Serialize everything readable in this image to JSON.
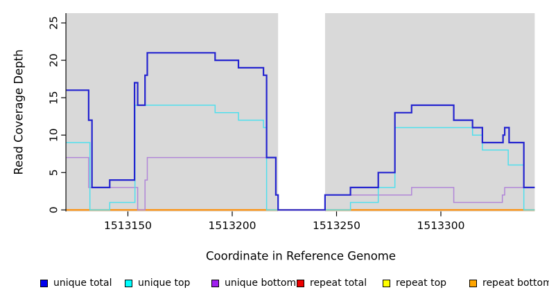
{
  "chart_data": {
    "type": "line",
    "step": true,
    "title": "",
    "xlabel": "Coordinate in Reference Genome",
    "ylabel": "Read Coverage Depth",
    "xlim": [
      1513120.5,
      1513345
    ],
    "ylim": [
      0,
      26.3
    ],
    "grid": false,
    "legend_position": "bottom",
    "plot_bg": "#d9d9d9",
    "page_bg": "#ffffff",
    "axis_color": "#000000",
    "no_data_region": {
      "x0": 1513222,
      "x1": 1513244.5,
      "color": "#ffffff"
    },
    "x_ticks": [
      {
        "v": 1513150,
        "label": "1513150"
      },
      {
        "v": 1513200,
        "label": "1513200"
      },
      {
        "v": 1513250,
        "label": "1513250"
      },
      {
        "v": 1513300,
        "label": "1513300"
      }
    ],
    "y_ticks": [
      {
        "v": 0,
        "label": "0"
      },
      {
        "v": 5,
        "label": "5"
      },
      {
        "v": 10,
        "label": "10"
      },
      {
        "v": 15,
        "label": "15"
      },
      {
        "v": 20,
        "label": "20"
      },
      {
        "v": 25,
        "label": "25"
      }
    ],
    "series": [
      {
        "label": "unique total",
        "line_color": "#2323cf",
        "legend_color": "#0000ee",
        "lw": 2.2,
        "z": 6,
        "points": [
          [
            1513120.5,
            16
          ],
          [
            1513131.2,
            12
          ],
          [
            1513132.8,
            3
          ],
          [
            1513141.3,
            4
          ],
          [
            1513153.2,
            17
          ],
          [
            1513154.7,
            14
          ],
          [
            1513158.2,
            18
          ],
          [
            1513159.3,
            21
          ],
          [
            1513191.8,
            20
          ],
          [
            1513203,
            19
          ],
          [
            1513215,
            18
          ],
          [
            1513216.5,
            7
          ],
          [
            1513220.9,
            2
          ],
          [
            1513222,
            0
          ],
          [
            1513244.5,
            2
          ],
          [
            1513256.7,
            3
          ],
          [
            1513270,
            5
          ],
          [
            1513278,
            13
          ],
          [
            1513286,
            14
          ],
          [
            1513306.2,
            12
          ],
          [
            1513315.2,
            11
          ],
          [
            1513319.9,
            9
          ],
          [
            1513329.8,
            10
          ],
          [
            1513330.6,
            11
          ],
          [
            1513332.7,
            9
          ],
          [
            1513339.8,
            3
          ]
        ]
      },
      {
        "label": "unique top",
        "line_color": "#4fdfed",
        "legend_color": "#00ffff",
        "lw": 1.5,
        "z": 5,
        "points": [
          [
            1513120.5,
            9
          ],
          [
            1513131.8,
            0
          ],
          [
            1513141.3,
            1
          ],
          [
            1513153.4,
            14
          ],
          [
            1513191.8,
            13
          ],
          [
            1513203,
            12
          ],
          [
            1513215,
            11
          ],
          [
            1513216.5,
            0
          ],
          [
            1513256.7,
            1
          ],
          [
            1513270,
            3
          ],
          [
            1513278,
            11
          ],
          [
            1513315.2,
            10
          ],
          [
            1513319.9,
            8
          ],
          [
            1513332.3,
            6
          ],
          [
            1513339.8,
            0
          ]
        ]
      },
      {
        "label": "unique bottom",
        "line_color": "#b186d8",
        "legend_color": "#a020f0",
        "lw": 1.5,
        "z": 4,
        "points": [
          [
            1513120.5,
            7
          ],
          [
            1513131.2,
            3
          ],
          [
            1513154.7,
            0
          ],
          [
            1513158.2,
            4
          ],
          [
            1513159.3,
            7
          ],
          [
            1513220.9,
            2
          ],
          [
            1513222,
            0
          ],
          [
            1513244.5,
            2
          ],
          [
            1513286,
            3
          ],
          [
            1513306.2,
            1
          ],
          [
            1513329.5,
            2
          ],
          [
            1513330.6,
            3
          ]
        ]
      },
      {
        "label": "repeat total",
        "line_color": "#ee0000",
        "legend_color": "#ee0000",
        "lw": 1.5,
        "z": 1,
        "points": [
          [
            1513120.5,
            0
          ]
        ]
      },
      {
        "label": "repeat top",
        "line_color": "#ffff00",
        "legend_color": "#ffff00",
        "lw": 1.5,
        "z": 2,
        "points": [
          [
            1513120.5,
            0
          ]
        ]
      },
      {
        "label": "repeat bottom",
        "line_color": "#ff8c00",
        "legend_color": "#ffa500",
        "lw": 2.2,
        "z": 3,
        "points": [
          [
            1513120.5,
            0
          ]
        ]
      }
    ]
  }
}
